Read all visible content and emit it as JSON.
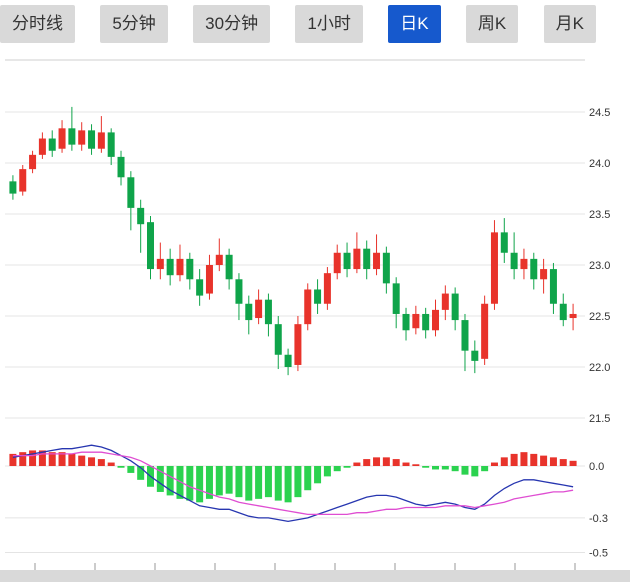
{
  "tabs": {
    "items": [
      {
        "label": "分时线",
        "active": false
      },
      {
        "label": "5分钟",
        "active": false
      },
      {
        "label": "30分钟",
        "active": false
      },
      {
        "label": "1小时",
        "active": false
      },
      {
        "label": "日K",
        "active": true
      },
      {
        "label": "周K",
        "active": false
      },
      {
        "label": "月K",
        "active": false
      }
    ]
  },
  "colors": {
    "up_red": "#e8332b",
    "down_green": "#0fa44a",
    "hist_green": "#2bd24f",
    "dif_blue": "#2736b0",
    "dea_magenta": "#df4ed2",
    "active_tab_blue": "#1659cd",
    "tab_gray": "#d9d9d9",
    "grid": "#e4e4e4",
    "axis_text": "#333333",
    "bottom_bar": "#d9d9d9"
  },
  "chart_data": {
    "type": "candlestick+macd",
    "price_panel": {
      "y_tick_labels": [
        "24.5",
        "24.0",
        "23.5",
        "23.0",
        "22.5",
        "22.0",
        "21.5"
      ],
      "ylim": [
        21.5,
        24.6
      ],
      "candle_format": [
        "open",
        "close",
        "high",
        "low"
      ],
      "candles": [
        [
          23.82,
          23.7,
          23.88,
          23.64
        ],
        [
          23.72,
          23.94,
          23.98,
          23.68
        ],
        [
          23.94,
          24.08,
          24.12,
          23.9
        ],
        [
          24.08,
          24.24,
          24.3,
          24.04
        ],
        [
          24.24,
          24.12,
          24.32,
          24.06
        ],
        [
          24.14,
          24.34,
          24.42,
          24.1
        ],
        [
          24.34,
          24.18,
          24.55,
          24.12
        ],
        [
          24.18,
          24.32,
          24.4,
          24.12
        ],
        [
          24.32,
          24.14,
          24.38,
          24.08
        ],
        [
          24.14,
          24.3,
          24.46,
          24.1
        ],
        [
          24.3,
          24.06,
          24.34,
          23.98
        ],
        [
          24.06,
          23.86,
          24.12,
          23.78
        ],
        [
          23.86,
          23.56,
          23.92,
          23.34
        ],
        [
          23.56,
          23.4,
          23.64,
          23.12
        ],
        [
          23.42,
          22.96,
          23.48,
          22.86
        ],
        [
          22.96,
          23.06,
          23.22,
          22.86
        ],
        [
          23.06,
          22.9,
          23.16,
          22.8
        ],
        [
          22.9,
          23.06,
          23.2,
          22.84
        ],
        [
          23.06,
          22.86,
          23.12,
          22.76
        ],
        [
          22.86,
          22.7,
          22.96,
          22.6
        ],
        [
          22.72,
          23.0,
          23.1,
          22.66
        ],
        [
          23.0,
          23.1,
          23.26,
          22.94
        ],
        [
          23.1,
          22.86,
          23.16,
          22.76
        ],
        [
          22.86,
          22.62,
          22.92,
          22.46
        ],
        [
          22.62,
          22.46,
          22.7,
          22.32
        ],
        [
          22.48,
          22.66,
          22.76,
          22.42
        ],
        [
          22.66,
          22.42,
          22.72,
          22.3
        ],
        [
          22.42,
          22.12,
          22.5,
          21.98
        ],
        [
          22.12,
          22.0,
          22.18,
          21.92
        ],
        [
          22.02,
          22.42,
          22.5,
          21.96
        ],
        [
          22.42,
          22.76,
          22.82,
          22.36
        ],
        [
          22.76,
          22.62,
          22.86,
          22.52
        ],
        [
          22.62,
          22.92,
          22.98,
          22.56
        ],
        [
          22.92,
          23.12,
          23.2,
          22.86
        ],
        [
          23.12,
          22.96,
          23.22,
          22.88
        ],
        [
          22.96,
          23.16,
          23.32,
          22.92
        ],
        [
          23.16,
          22.96,
          23.24,
          22.86
        ],
        [
          22.96,
          23.12,
          23.3,
          22.9
        ],
        [
          23.12,
          22.82,
          23.18,
          22.72
        ],
        [
          22.82,
          22.52,
          22.88,
          22.38
        ],
        [
          22.52,
          22.36,
          22.58,
          22.26
        ],
        [
          22.38,
          22.52,
          22.6,
          22.32
        ],
        [
          22.52,
          22.36,
          22.58,
          22.28
        ],
        [
          22.36,
          22.56,
          22.66,
          22.3
        ],
        [
          22.56,
          22.72,
          22.8,
          22.46
        ],
        [
          22.72,
          22.46,
          22.78,
          22.36
        ],
        [
          22.46,
          22.16,
          22.52,
          21.96
        ],
        [
          22.16,
          22.06,
          22.26,
          21.94
        ],
        [
          22.08,
          22.62,
          22.7,
          22.02
        ],
        [
          22.62,
          23.32,
          23.44,
          22.56
        ],
        [
          23.32,
          23.12,
          23.46,
          23.02
        ],
        [
          23.12,
          22.96,
          23.32,
          22.86
        ],
        [
          22.96,
          23.06,
          23.16,
          22.86
        ],
        [
          23.06,
          22.86,
          23.12,
          22.76
        ],
        [
          22.86,
          22.96,
          23.06,
          22.72
        ],
        [
          22.96,
          22.62,
          23.02,
          22.52
        ],
        [
          22.62,
          22.46,
          22.72,
          22.4
        ],
        [
          22.48,
          22.52,
          22.62,
          22.36
        ]
      ]
    },
    "macd_panel": {
      "y_tick_labels": [
        "0.0",
        "-0.3",
        "-0.5"
      ],
      "ylim": [
        -0.55,
        0.15
      ],
      "histogram": [
        0.07,
        0.08,
        0.09,
        0.09,
        0.08,
        0.08,
        0.07,
        0.06,
        0.05,
        0.04,
        0.02,
        -0.01,
        -0.04,
        -0.08,
        -0.12,
        -0.15,
        -0.17,
        -0.19,
        -0.2,
        -0.21,
        -0.19,
        -0.17,
        -0.16,
        -0.18,
        -0.2,
        -0.19,
        -0.18,
        -0.2,
        -0.21,
        -0.18,
        -0.14,
        -0.1,
        -0.06,
        -0.03,
        -0.01,
        0.02,
        0.04,
        0.05,
        0.05,
        0.04,
        0.02,
        0.01,
        -0.01,
        -0.02,
        -0.02,
        -0.03,
        -0.05,
        -0.06,
        -0.03,
        0.02,
        0.05,
        0.07,
        0.08,
        0.07,
        0.06,
        0.05,
        0.04,
        0.03
      ],
      "dif_line": [
        0.05,
        0.06,
        0.07,
        0.08,
        0.09,
        0.1,
        0.1,
        0.11,
        0.12,
        0.11,
        0.09,
        0.06,
        0.03,
        -0.01,
        -0.06,
        -0.1,
        -0.14,
        -0.17,
        -0.2,
        -0.23,
        -0.24,
        -0.25,
        -0.25,
        -0.27,
        -0.29,
        -0.3,
        -0.3,
        -0.31,
        -0.32,
        -0.31,
        -0.3,
        -0.28,
        -0.26,
        -0.24,
        -0.22,
        -0.2,
        -0.18,
        -0.17,
        -0.17,
        -0.18,
        -0.2,
        -0.22,
        -0.23,
        -0.22,
        -0.21,
        -0.22,
        -0.24,
        -0.25,
        -0.22,
        -0.17,
        -0.13,
        -0.1,
        -0.08,
        -0.08,
        -0.09,
        -0.1,
        -0.11,
        -0.12
      ],
      "dea_line": [
        0.06,
        0.06,
        0.06,
        0.07,
        0.07,
        0.07,
        0.07,
        0.08,
        0.08,
        0.08,
        0.07,
        0.06,
        0.05,
        0.03,
        0.0,
        -0.03,
        -0.06,
        -0.09,
        -0.12,
        -0.14,
        -0.16,
        -0.18,
        -0.19,
        -0.21,
        -0.22,
        -0.23,
        -0.24,
        -0.25,
        -0.26,
        -0.27,
        -0.28,
        -0.28,
        -0.28,
        -0.28,
        -0.28,
        -0.27,
        -0.27,
        -0.26,
        -0.25,
        -0.25,
        -0.24,
        -0.24,
        -0.24,
        -0.24,
        -0.23,
        -0.23,
        -0.23,
        -0.24,
        -0.23,
        -0.22,
        -0.21,
        -0.19,
        -0.18,
        -0.17,
        -0.16,
        -0.15,
        -0.15,
        -0.14
      ]
    }
  }
}
